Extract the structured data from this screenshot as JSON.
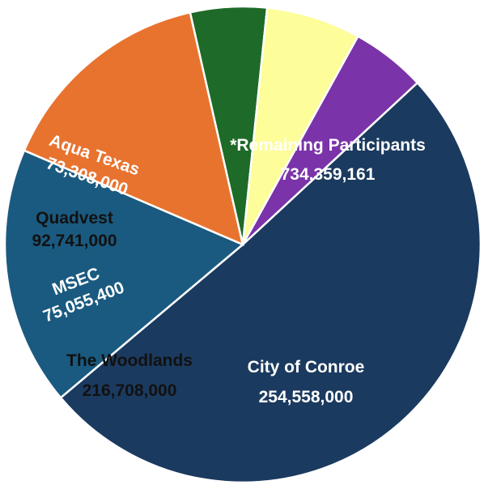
{
  "chart_data": {
    "type": "pie",
    "title": "",
    "start_angle_deg": -42.8,
    "direction": "clockwise",
    "slices": [
      {
        "label": "*Remaining Participants",
        "value": 734359161,
        "value_label": "734,359,161",
        "color": "#1b3a5f",
        "text_color": "#ffffff"
      },
      {
        "label": "City of Conroe",
        "value": 254558000,
        "value_label": "254,558,000",
        "color": "#1a5a80",
        "text_color": "#ffffff"
      },
      {
        "label": "The Woodlands",
        "value": 216708000,
        "value_label": "216,708,000",
        "color": "#e8732f",
        "text_color": "#111111"
      },
      {
        "label": "MSEC",
        "value": 75055400,
        "value_label": "75,055,400",
        "color": "#1e6a28",
        "text_color": "#ffffff"
      },
      {
        "label": "Quadvest",
        "value": 92741000,
        "value_label": "92,741,000",
        "color": "#fdfd9a",
        "text_color": "#111111"
      },
      {
        "label": "Aqua Texas",
        "value": 73308000,
        "value_label": "73,308,000",
        "color": "#7a33a8",
        "text_color": "#ffffff"
      }
    ]
  }
}
